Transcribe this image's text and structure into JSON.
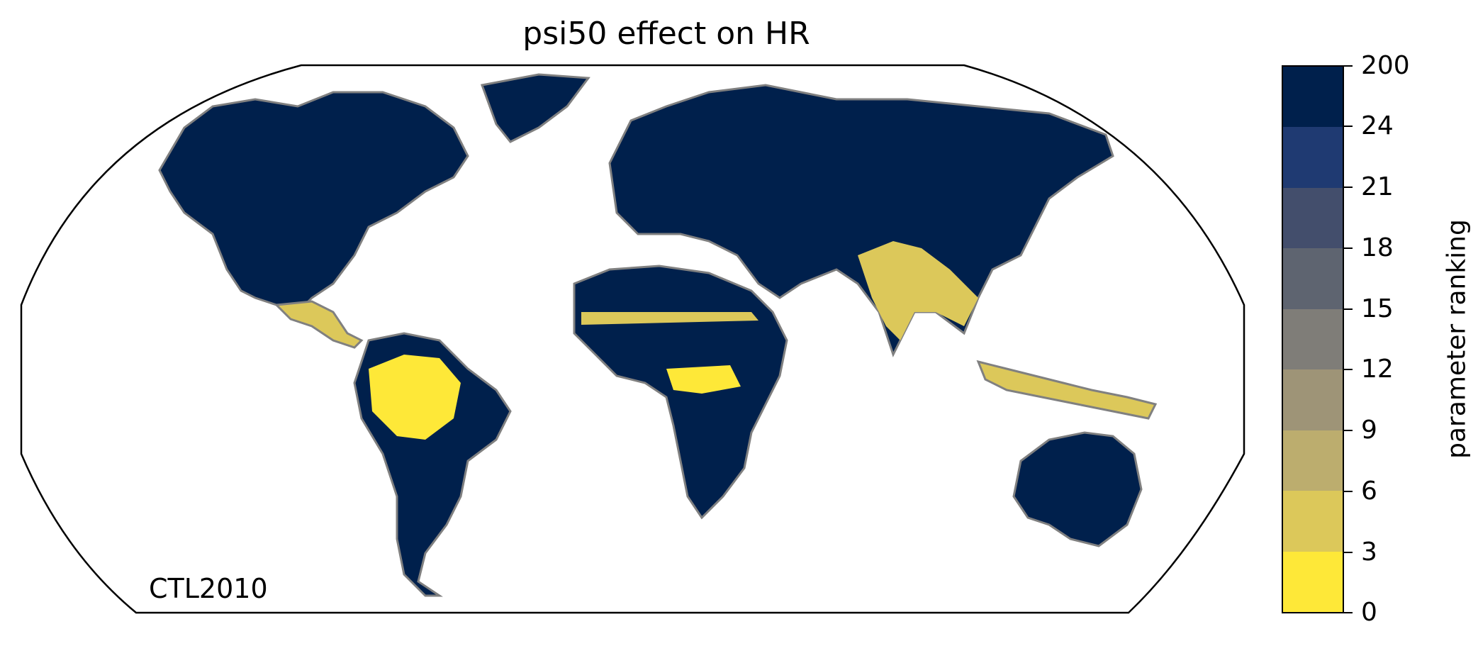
{
  "title": "psi50 effect on HR",
  "panel_label": "CTL2010",
  "colorbar": {
    "label": "parameter ranking",
    "ticks": [
      "200",
      "24",
      "21",
      "18",
      "15",
      "12",
      "9",
      "6",
      "3",
      "0"
    ],
    "colors": [
      "#00204c",
      "#1f3a72",
      "#434e6c",
      "#5e6470",
      "#7f7d78",
      "#9e9477",
      "#bcad6e",
      "#dcc85a",
      "#fee838"
    ]
  },
  "map": {
    "projection": "Robinson",
    "coastline_color": "#808080",
    "ocean_color": "#ffffff",
    "border_color": "#000000"
  }
}
